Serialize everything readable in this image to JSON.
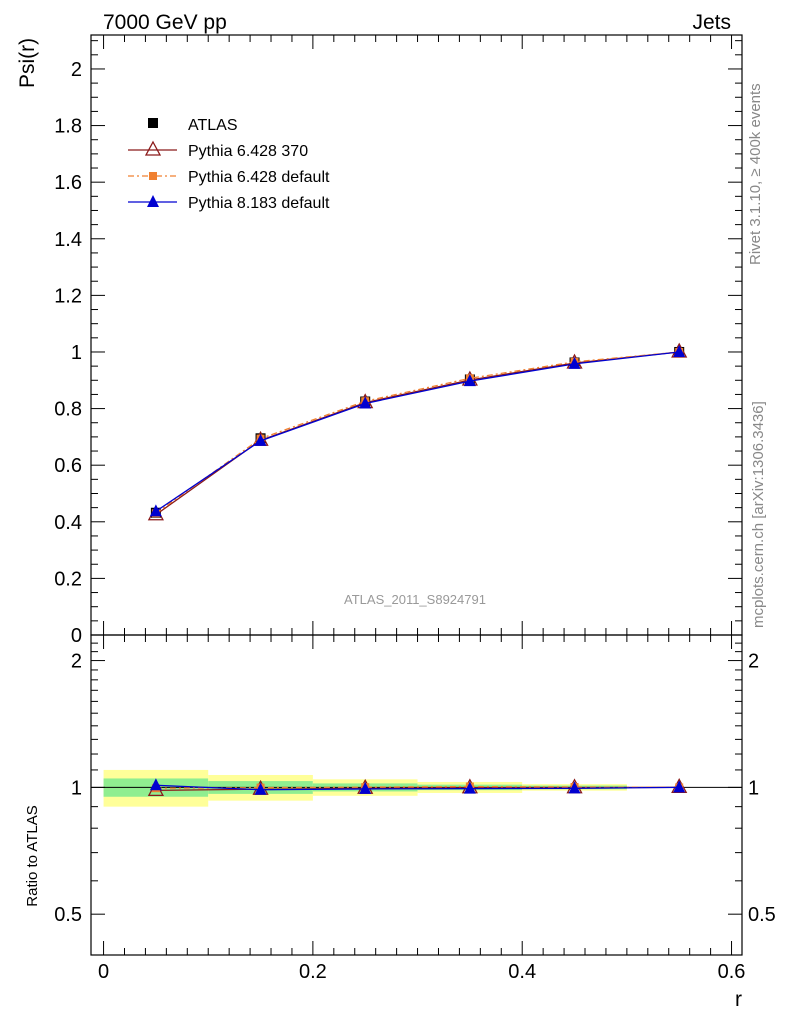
{
  "header": {
    "left": "7000 GeV pp",
    "right": "Jets"
  },
  "side_text": {
    "rivet": "Rivet 3.1.10, ≥ 400k events",
    "mcplots": "mcplots.cern.ch [arXiv:1306.3436]"
  },
  "watermark": "ATLAS_2011_S8924791",
  "chart_data": {
    "type": "line",
    "title": "",
    "xlabel": "r",
    "ylabel": "Psi(r)",
    "ratio_ylabel": "Ratio to ATLAS",
    "xlim": [
      -0.012,
      0.61
    ],
    "ylim": [
      0,
      2.12
    ],
    "ratio_ylim": [
      0.4,
      2.3
    ],
    "x_ticks": [
      {
        "v": 0,
        "label": "0"
      },
      {
        "v": 0.2,
        "label": "0.2"
      },
      {
        "v": 0.4,
        "label": "0.4"
      },
      {
        "v": 0.6,
        "label": "0.6"
      }
    ],
    "y_ticks": [
      {
        "v": 0,
        "label": "0"
      },
      {
        "v": 0.2,
        "label": "0.2"
      },
      {
        "v": 0.4,
        "label": "0.4"
      },
      {
        "v": 0.6,
        "label": "0.6"
      },
      {
        "v": 0.8,
        "label": "0.8"
      },
      {
        "v": 1,
        "label": "1"
      },
      {
        "v": 1.2,
        "label": "1.2"
      },
      {
        "v": 1.4,
        "label": "1.4"
      },
      {
        "v": 1.6,
        "label": "1.6"
      },
      {
        "v": 1.8,
        "label": "1.8"
      },
      {
        "v": 2,
        "label": "2"
      }
    ],
    "ratio_ticks": [
      {
        "v": 0.5,
        "label": "0.5"
      },
      {
        "v": 1,
        "label": "1"
      },
      {
        "v": 2,
        "label": "2"
      }
    ],
    "x": [
      0.05,
      0.15,
      0.25,
      0.35,
      0.45,
      0.55
    ],
    "bin_edges": [
      0,
      0.1,
      0.2,
      0.3,
      0.4,
      0.5,
      0.6
    ],
    "reference": {
      "name": "ATLAS",
      "values": [
        0.432,
        0.695,
        0.825,
        0.903,
        0.963,
        1.0
      ],
      "stat_band": [
        0.05,
        0.035,
        0.022,
        0.015,
        0.01,
        0.0
      ],
      "total_band": [
        0.1,
        0.07,
        0.045,
        0.03,
        0.018,
        0.0
      ]
    },
    "series": [
      {
        "name": "Pythia 6.428 370",
        "color": "#8b1a1a",
        "marker": "open-triangle",
        "values": [
          0.425,
          0.688,
          0.821,
          0.901,
          0.961,
          1.0
        ]
      },
      {
        "name": "Pythia 6.428 default",
        "color": "#f08030",
        "marker": "square",
        "values": [
          0.43,
          0.694,
          0.826,
          0.907,
          0.965,
          1.0
        ]
      },
      {
        "name": "Pythia 8.183 default",
        "color": "#0000d0",
        "marker": "filled-triangle",
        "values": [
          0.437,
          0.686,
          0.818,
          0.897,
          0.958,
          1.0
        ]
      }
    ],
    "colors": {
      "stat_band": "#90ee90",
      "total_band": "#ffff99",
      "reference": "#000000"
    },
    "legend_position": "top-left"
  }
}
